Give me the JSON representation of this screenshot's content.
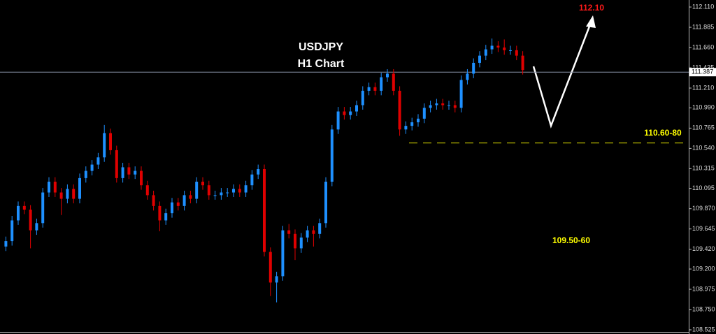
{
  "chart_data": {
    "type": "candlestick",
    "title": "USDJPY",
    "subtitle": "H1 Chart",
    "up_color": "#1e90ff",
    "down_color": "#e00000",
    "open": [
      109.45,
      109.51,
      109.74,
      109.9,
      109.86,
      109.63,
      109.71,
      110.05,
      110.17,
      110.05,
      109.98,
      110.09,
      109.98,
      110.21,
      110.29,
      110.36,
      110.44,
      110.71,
      110.52,
      110.21,
      110.33,
      110.25,
      110.29,
      110.13,
      110.02,
      109.9,
      109.74,
      109.82,
      109.94,
      109.9,
      110.02,
      109.98,
      110.17,
      110.13,
      110.02,
      110.02,
      110.05,
      110.05,
      110.09,
      110.05,
      110.13,
      110.25,
      110.31,
      109.39,
      109.05,
      109.12,
      109.63,
      109.59,
      109.43,
      109.55,
      109.63,
      109.59,
      109.71,
      110.17,
      110.75,
      110.95,
      110.91,
      110.95,
      111.02,
      111.18,
      111.22,
      111.18,
      111.33,
      111.37,
      111.18,
      110.75,
      110.79,
      110.83,
      110.87,
      110.99,
      111.02,
      111.04,
      111.02,
      111.02,
      110.99,
      111.3,
      111.37,
      111.49,
      111.57,
      111.64,
      111.68,
      111.66,
      111.63,
      111.63,
      111.57
    ],
    "high": [
      109.56,
      109.79,
      109.95,
      109.95,
      109.91,
      109.76,
      110.1,
      110.22,
      110.22,
      110.1,
      110.14,
      110.14,
      110.26,
      110.34,
      110.41,
      110.49,
      110.8,
      110.76,
      110.57,
      110.38,
      110.38,
      110.34,
      110.34,
      110.18,
      110.07,
      109.95,
      109.87,
      109.99,
      109.99,
      110.07,
      110.07,
      110.22,
      110.22,
      110.18,
      110.07,
      110.1,
      110.1,
      110.14,
      110.14,
      110.18,
      110.3,
      110.36,
      110.36,
      109.44,
      109.17,
      109.68,
      109.7,
      109.64,
      109.6,
      109.68,
      109.68,
      109.76,
      110.22,
      110.8,
      111.0,
      111.0,
      111.0,
      111.07,
      111.23,
      111.27,
      111.27,
      111.38,
      111.42,
      111.42,
      111.23,
      110.84,
      110.88,
      110.92,
      111.04,
      111.07,
      111.09,
      111.09,
      111.07,
      111.07,
      111.35,
      111.42,
      111.54,
      111.62,
      111.69,
      111.76,
      111.73,
      111.75,
      111.68,
      111.68,
      111.62
    ],
    "low": [
      109.4,
      109.46,
      109.69,
      109.81,
      109.43,
      109.58,
      109.66,
      110.0,
      110.0,
      109.8,
      109.93,
      109.93,
      109.93,
      110.16,
      110.24,
      110.31,
      110.39,
      110.47,
      110.16,
      110.16,
      110.2,
      110.2,
      110.08,
      109.97,
      109.85,
      109.62,
      109.69,
      109.77,
      109.85,
      109.85,
      109.93,
      109.93,
      110.08,
      109.97,
      109.97,
      109.97,
      110.0,
      110.0,
      110.0,
      110.0,
      110.08,
      110.2,
      109.34,
      108.9,
      108.83,
      109.07,
      109.54,
      109.3,
      109.38,
      109.5,
      109.45,
      109.54,
      109.66,
      110.12,
      110.7,
      110.86,
      110.86,
      110.9,
      110.97,
      111.13,
      111.13,
      111.13,
      111.28,
      111.13,
      110.68,
      110.7,
      110.74,
      110.78,
      110.82,
      110.94,
      110.97,
      110.97,
      110.97,
      110.94,
      110.94,
      111.25,
      111.32,
      111.44,
      111.52,
      111.59,
      111.61,
      111.58,
      111.58,
      111.52,
      111.36
    ],
    "close": [
      109.51,
      109.74,
      109.9,
      109.86,
      109.63,
      109.71,
      110.05,
      110.17,
      110.05,
      109.98,
      110.09,
      109.98,
      110.21,
      110.29,
      110.36,
      110.44,
      110.71,
      110.52,
      110.21,
      110.33,
      110.25,
      110.29,
      110.13,
      110.02,
      109.9,
      109.74,
      109.82,
      109.94,
      109.9,
      110.02,
      109.98,
      110.17,
      110.13,
      110.02,
      110.02,
      110.05,
      110.05,
      110.09,
      110.05,
      110.13,
      110.25,
      110.31,
      109.39,
      109.05,
      109.12,
      109.63,
      109.59,
      109.43,
      109.55,
      109.63,
      109.59,
      109.71,
      110.17,
      110.75,
      110.95,
      110.91,
      110.95,
      111.02,
      111.18,
      111.22,
      111.18,
      111.33,
      111.37,
      111.18,
      110.75,
      110.79,
      110.83,
      110.87,
      110.99,
      111.02,
      111.04,
      111.02,
      111.02,
      110.99,
      111.3,
      111.37,
      111.49,
      111.57,
      111.64,
      111.68,
      111.66,
      111.63,
      111.63,
      111.57,
      111.41
    ],
    "ylim": [
      108.494,
      112.188
    ],
    "yticks": [
      {
        "value": 112.11,
        "label": "112.110"
      },
      111.885,
      {
        "value": 111.66,
        "label": "111.660"
      },
      111.435,
      {
        "value": 111.21,
        "label": "111.210"
      },
      {
        "value": 110.99,
        "label": "110.990"
      },
      110.765,
      {
        "value": 110.54,
        "label": "110.540"
      },
      110.315,
      110.095,
      {
        "value": 109.87,
        "label": "109.870"
      },
      109.645,
      {
        "value": 109.42,
        "label": "109.420"
      },
      {
        "value": 109.2,
        "label": "109.200"
      },
      108.975,
      {
        "value": 108.75,
        "label": "108.750"
      },
      108.525
    ],
    "current_price": 111.387,
    "support_level": {
      "value": 110.6,
      "label": "110.60-80",
      "color": "#e8e800"
    },
    "annotations": [
      {
        "text": "109.50-60",
        "color": "#ffff00"
      },
      {
        "text": "112.10",
        "color": "#ff1a1a"
      }
    ]
  }
}
